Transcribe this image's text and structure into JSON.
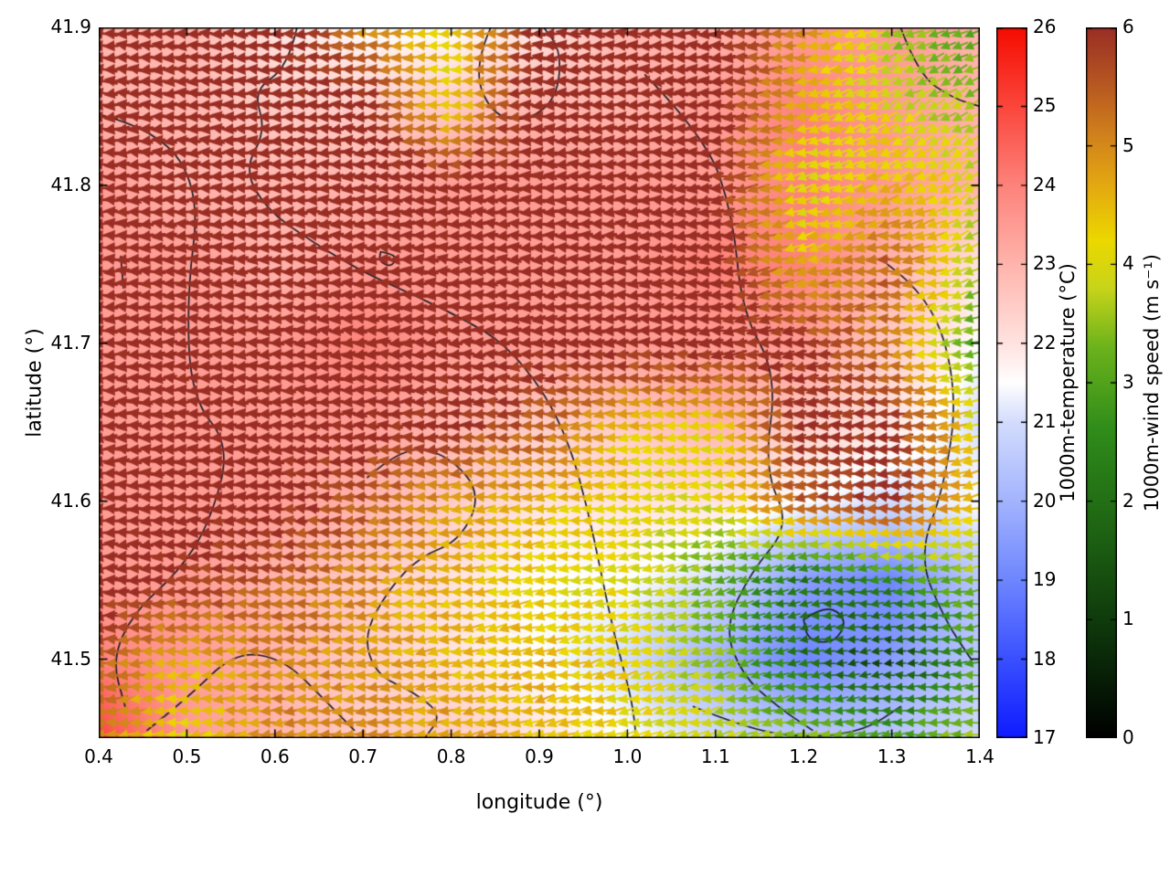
{
  "chart_data": {
    "type": "heatmap+quiver",
    "title": "",
    "xlabel": "longitude (°)",
    "ylabel": "latitude (°)",
    "xlim": [
      0.4,
      1.4
    ],
    "ylim": [
      41.45,
      41.9
    ],
    "x_ticks": {
      "values": [
        0.4,
        0.5,
        0.6,
        0.7,
        0.8,
        0.9,
        1.0,
        1.1,
        1.2,
        1.3,
        1.4
      ],
      "labels": [
        "0.4",
        "0.5",
        "0.6",
        "0.7",
        "0.8",
        "0.9",
        "1.0",
        "1.1",
        "1.2",
        "1.3",
        "1.4"
      ]
    },
    "y_ticks": {
      "values": [
        41.5,
        41.6,
        41.7,
        41.8,
        41.9
      ],
      "labels": [
        "41.5",
        "41.6",
        "41.7",
        "41.8",
        "41.9"
      ]
    },
    "grid_lons": [
      0.4,
      0.5,
      0.6,
      0.7,
      0.8,
      0.9,
      1.0,
      1.1,
      1.2,
      1.3,
      1.4
    ],
    "grid_lats": [
      41.9,
      41.85,
      41.8,
      41.75,
      41.7,
      41.65,
      41.6,
      41.55,
      41.5,
      41.45
    ],
    "temperature": {
      "label": "1000m-temperature (°C)",
      "units": "°C",
      "range": [
        17,
        26
      ],
      "ticks": {
        "values": [
          17,
          18,
          19,
          20,
          21,
          22,
          23,
          24,
          25,
          26
        ],
        "labels": [
          "17",
          "18",
          "19",
          "20",
          "21",
          "22",
          "23",
          "24",
          "25",
          "26"
        ]
      },
      "colormap": [
        [
          17,
          "#0f1bff"
        ],
        [
          18,
          "#3a50ff"
        ],
        [
          19,
          "#6e86ff"
        ],
        [
          20,
          "#a3b4fd"
        ],
        [
          21,
          "#d3dcfd"
        ],
        [
          21.5,
          "#ffffff"
        ],
        [
          22,
          "#ffe3e0"
        ],
        [
          23,
          "#ffb4ac"
        ],
        [
          24,
          "#fd837b"
        ],
        [
          25,
          "#fb463c"
        ],
        [
          26,
          "#f60c00"
        ]
      ],
      "grid": [
        [
          23.0,
          23.0,
          22.0,
          21.5,
          21.5,
          22.0,
          23.0,
          23.0,
          23.5,
          23.5,
          23.0
        ],
        [
          23.0,
          23.0,
          22.5,
          22.5,
          22.5,
          23.0,
          23.0,
          23.5,
          24.0,
          23.5,
          23.0
        ],
        [
          23.5,
          23.0,
          23.0,
          23.0,
          23.5,
          23.5,
          23.5,
          23.5,
          24.0,
          23.5,
          23.0
        ],
        [
          23.5,
          23.5,
          23.0,
          23.5,
          23.5,
          23.5,
          23.5,
          24.0,
          24.0,
          23.0,
          22.0
        ],
        [
          23.5,
          23.5,
          23.5,
          24.0,
          23.5,
          23.5,
          23.5,
          23.5,
          23.5,
          22.5,
          21.5
        ],
        [
          23.5,
          23.5,
          23.5,
          23.5,
          23.0,
          22.5,
          22.5,
          23.0,
          22.5,
          22.0,
          21.0
        ],
        [
          23.5,
          23.5,
          23.5,
          23.0,
          22.5,
          22.0,
          22.0,
          22.0,
          21.5,
          21.0,
          21.5
        ],
        [
          23.5,
          23.5,
          23.0,
          22.5,
          22.0,
          21.5,
          21.5,
          21.0,
          19.5,
          19.0,
          20.5
        ],
        [
          24.0,
          23.5,
          23.0,
          22.5,
          22.0,
          21.5,
          21.0,
          20.0,
          19.0,
          19.5,
          20.5
        ],
        [
          25.0,
          23.5,
          23.0,
          22.5,
          22.5,
          22.0,
          21.5,
          21.0,
          20.5,
          20.5,
          21.0
        ]
      ]
    },
    "wind": {
      "label": "1000m-wind speed (m s⁻¹)",
      "units": "m s⁻¹",
      "range": [
        0,
        6
      ],
      "ticks": {
        "values": [
          0,
          1,
          2,
          3,
          4,
          5,
          6
        ],
        "labels": [
          "0",
          "1",
          "2",
          "3",
          "4",
          "5",
          "6"
        ]
      },
      "colormap": [
        [
          0,
          "#000000"
        ],
        [
          0.8,
          "#0c300a"
        ],
        [
          1.6,
          "#1b5c12"
        ],
        [
          2.6,
          "#2f8c1a"
        ],
        [
          3.3,
          "#6cb31c"
        ],
        [
          3.8,
          "#c8d41a"
        ],
        [
          4.2,
          "#ecd800"
        ],
        [
          4.7,
          "#e3a512"
        ],
        [
          5.1,
          "#d0801c"
        ],
        [
          5.6,
          "#b25022"
        ],
        [
          6,
          "#9a2e24"
        ]
      ],
      "speed_grid": [
        [
          6.2,
          6.2,
          6.2,
          5.0,
          4.2,
          6.2,
          6.2,
          6.2,
          5.0,
          3.5,
          3.0
        ],
        [
          6.2,
          6.2,
          6.2,
          6.2,
          4.2,
          6.2,
          6.2,
          6.2,
          4.5,
          4.0,
          3.5
        ],
        [
          6.2,
          6.2,
          6.2,
          6.2,
          6.2,
          6.2,
          6.2,
          6.2,
          4.0,
          4.5,
          4.0
        ],
        [
          6.2,
          6.2,
          6.2,
          6.2,
          6.2,
          6.2,
          6.2,
          6.2,
          4.5,
          5.5,
          3.5
        ],
        [
          6.2,
          6.2,
          6.2,
          6.2,
          6.2,
          6.2,
          6.2,
          6.2,
          6.0,
          5.0,
          3.0
        ],
        [
          6.2,
          6.2,
          6.2,
          6.2,
          6.0,
          5.5,
          4.5,
          4.2,
          6.0,
          6.0,
          4.0
        ],
        [
          6.2,
          6.2,
          6.2,
          5.5,
          4.8,
          4.5,
          4.2,
          4.0,
          5.5,
          6.0,
          4.5
        ],
        [
          6.2,
          6.0,
          5.5,
          5.0,
          4.5,
          4.2,
          4.0,
          3.2,
          2.0,
          2.5,
          3.5
        ],
        [
          5.5,
          4.5,
          5.0,
          4.8,
          4.5,
          4.5,
          4.2,
          3.5,
          2.0,
          1.0,
          3.0
        ],
        [
          5.0,
          4.2,
          5.0,
          5.0,
          4.8,
          4.5,
          4.2,
          3.8,
          3.5,
          3.0,
          3.5
        ]
      ],
      "dir_grid": [
        [
          180,
          178,
          182,
          185,
          180,
          178,
          175,
          180,
          185,
          200,
          205
        ],
        [
          180,
          180,
          178,
          180,
          182,
          180,
          178,
          182,
          190,
          205,
          210
        ],
        [
          178,
          180,
          180,
          182,
          180,
          178,
          180,
          185,
          195,
          200,
          210
        ],
        [
          180,
          182,
          180,
          180,
          178,
          180,
          182,
          188,
          195,
          185,
          200
        ],
        [
          180,
          180,
          182,
          180,
          180,
          182,
          180,
          185,
          190,
          180,
          195
        ],
        [
          182,
          180,
          180,
          178,
          180,
          185,
          188,
          185,
          182,
          185,
          200
        ],
        [
          180,
          182,
          180,
          180,
          185,
          188,
          190,
          188,
          185,
          180,
          195
        ],
        [
          182,
          180,
          182,
          185,
          188,
          190,
          192,
          195,
          190,
          185,
          190
        ],
        [
          185,
          182,
          180,
          185,
          190,
          192,
          195,
          198,
          190,
          180,
          185
        ],
        [
          185,
          184,
          182,
          185,
          190,
          192,
          195,
          195,
          190,
          185,
          188
        ]
      ]
    },
    "contours": [
      [
        [
          0.4,
          41.845
        ],
        [
          0.47,
          41.835
        ],
        [
          0.515,
          41.795
        ],
        [
          0.5,
          41.73
        ],
        [
          0.505,
          41.665
        ],
        [
          0.55,
          41.635
        ],
        [
          0.525,
          41.585
        ],
        [
          0.49,
          41.555
        ],
        [
          0.44,
          41.53
        ],
        [
          0.415,
          41.5
        ],
        [
          0.43,
          41.47
        ]
      ],
      [
        [
          0.625,
          41.9
        ],
        [
          0.615,
          41.875
        ],
        [
          0.575,
          41.86
        ],
        [
          0.59,
          41.835
        ],
        [
          0.565,
          41.81
        ],
        [
          0.59,
          41.785
        ],
        [
          0.64,
          41.765
        ],
        [
          0.7,
          41.745
        ],
        [
          0.76,
          41.73
        ],
        [
          0.815,
          41.715
        ],
        [
          0.86,
          41.7
        ],
        [
          0.905,
          41.67
        ],
        [
          0.935,
          41.635
        ],
        [
          0.955,
          41.595
        ],
        [
          0.97,
          41.555
        ],
        [
          0.985,
          41.515
        ],
        [
          1.005,
          41.475
        ],
        [
          1.01,
          41.45
        ]
      ],
      [
        [
          0.705,
          41.615
        ],
        [
          0.745,
          41.635
        ],
        [
          0.795,
          41.63
        ],
        [
          0.835,
          41.605
        ],
        [
          0.81,
          41.575
        ],
        [
          0.765,
          41.565
        ],
        [
          0.73,
          41.545
        ],
        [
          0.7,
          41.515
        ],
        [
          0.715,
          41.49
        ],
        [
          0.755,
          41.48
        ],
        [
          0.79,
          41.465
        ],
        [
          0.77,
          41.45
        ]
      ],
      [
        [
          1.02,
          41.87
        ],
        [
          1.09,
          41.83
        ],
        [
          1.12,
          41.78
        ],
        [
          1.13,
          41.72
        ],
        [
          1.17,
          41.68
        ],
        [
          1.155,
          41.62
        ],
        [
          1.185,
          41.585
        ],
        [
          1.14,
          41.555
        ],
        [
          1.11,
          41.52
        ],
        [
          1.13,
          41.49
        ],
        [
          1.17,
          41.47
        ],
        [
          1.21,
          41.455
        ]
      ],
      [
        [
          1.295,
          41.75
        ],
        [
          1.345,
          41.73
        ],
        [
          1.375,
          41.67
        ],
        [
          1.36,
          41.61
        ],
        [
          1.33,
          41.565
        ],
        [
          1.36,
          41.525
        ],
        [
          1.39,
          41.5
        ]
      ],
      [
        [
          0.845,
          41.9
        ],
        [
          0.825,
          41.875
        ],
        [
          0.845,
          41.845
        ],
        [
          0.885,
          41.84
        ],
        [
          0.92,
          41.855
        ],
        [
          0.925,
          41.885
        ],
        [
          0.905,
          41.9
        ]
      ],
      [
        [
          0.455,
          41.455
        ],
        [
          0.5,
          41.475
        ],
        [
          0.555,
          41.505
        ],
        [
          0.61,
          41.5
        ],
        [
          0.655,
          41.475
        ],
        [
          0.69,
          41.455
        ]
      ],
      [
        [
          1.075,
          41.47
        ],
        [
          1.14,
          41.455
        ],
        [
          1.21,
          41.45
        ],
        [
          1.27,
          41.455
        ],
        [
          1.31,
          41.47
        ]
      ],
      [
        [
          1.2,
          41.525
        ],
        [
          1.225,
          41.535
        ],
        [
          1.25,
          41.525
        ],
        [
          1.235,
          41.51
        ],
        [
          1.205,
          41.512
        ],
        [
          1.2,
          41.525
        ]
      ],
      [
        [
          0.425,
          41.755
        ],
        [
          0.428,
          41.735
        ]
      ],
      [
        [
          1.31,
          41.9
        ],
        [
          1.33,
          41.87
        ],
        [
          1.37,
          41.855
        ],
        [
          1.4,
          41.85
        ]
      ],
      [
        [
          0.72,
          41.758
        ],
        [
          0.74,
          41.756
        ],
        [
          0.732,
          41.748
        ],
        [
          0.718,
          41.752
        ],
        [
          0.72,
          41.758
        ]
      ]
    ]
  }
}
